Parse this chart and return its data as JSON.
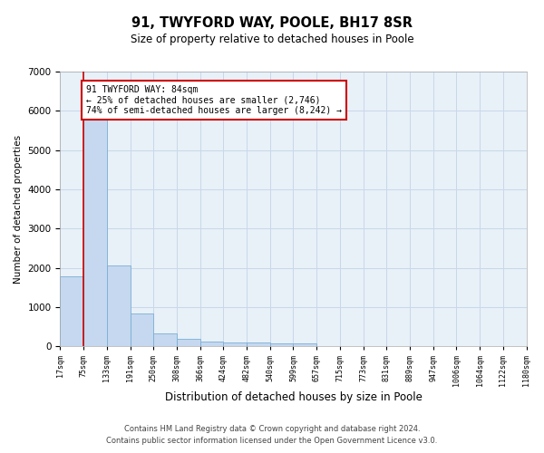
{
  "title": "91, TWYFORD WAY, POOLE, BH17 8SR",
  "subtitle": "Size of property relative to detached houses in Poole",
  "xlabel": "Distribution of detached houses by size in Poole",
  "ylabel": "Number of detached properties",
  "bar_color": "#c5d8ef",
  "bar_edge_color": "#7aafd4",
  "grid_color": "#c8d8ea",
  "background_color": "#e8f0f8",
  "vline_color": "#cc0000",
  "annotation_text": "91 TWYFORD WAY: 84sqm\n← 25% of detached houses are smaller (2,746)\n74% of semi-detached houses are larger (8,242) →",
  "annotation_box_color": "#ffffff",
  "annotation_box_edge": "#cc0000",
  "bins": [
    "17sqm",
    "75sqm",
    "133sqm",
    "191sqm",
    "250sqm",
    "308sqm",
    "366sqm",
    "424sqm",
    "482sqm",
    "540sqm",
    "599sqm",
    "657sqm",
    "715sqm",
    "773sqm",
    "831sqm",
    "889sqm",
    "947sqm",
    "1006sqm",
    "1064sqm",
    "1122sqm",
    "1180sqm"
  ],
  "values": [
    1780,
    5800,
    2060,
    830,
    340,
    190,
    120,
    110,
    110,
    80,
    80,
    0,
    0,
    0,
    0,
    0,
    0,
    0,
    0,
    0
  ],
  "ylim": [
    0,
    7000
  ],
  "yticks": [
    0,
    1000,
    2000,
    3000,
    4000,
    5000,
    6000,
    7000
  ],
  "footer_line1": "Contains HM Land Registry data © Crown copyright and database right 2024.",
  "footer_line2": "Contains public sector information licensed under the Open Government Licence v3.0."
}
